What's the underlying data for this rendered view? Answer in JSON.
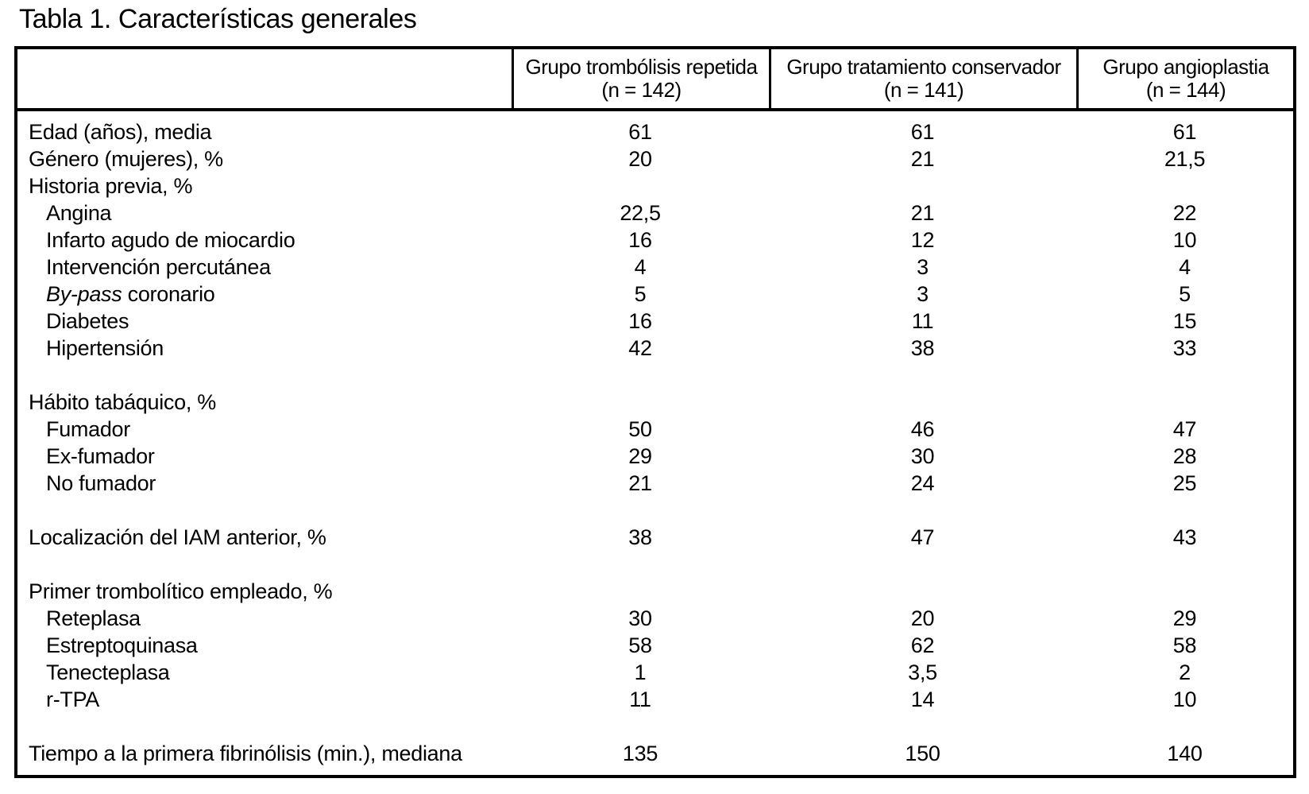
{
  "title": "Tabla 1. Características generales",
  "colors": {
    "text": "#000000",
    "background": "#ffffff",
    "border": "#000000"
  },
  "table": {
    "row_header_column_title": "",
    "columns": [
      {
        "title": "Grupo trombólisis repetida",
        "n": "(n = 142)"
      },
      {
        "title": "Grupo tratamiento conservador",
        "n": "(n = 141)"
      },
      {
        "title": "Grupo angioplastia",
        "n": "(n = 144)"
      }
    ],
    "rows": [
      {
        "label": "Edad (años), media",
        "indent": false,
        "values": [
          "61",
          "61",
          "61"
        ]
      },
      {
        "label": "Género (mujeres), %",
        "indent": false,
        "values": [
          "20",
          "21",
          "21,5"
        ]
      },
      {
        "label": "Historia previa, %",
        "indent": false,
        "values": [
          "",
          "",
          ""
        ]
      },
      {
        "label": "Angina",
        "indent": true,
        "values": [
          "22,5",
          "21",
          "22"
        ]
      },
      {
        "label": "Infarto agudo de miocardio",
        "indent": true,
        "values": [
          "16",
          "12",
          "10"
        ]
      },
      {
        "label": "Intervención percutánea",
        "indent": true,
        "values": [
          "4",
          "3",
          "4"
        ]
      },
      {
        "label_italic": "By-pass",
        "label": " coronario",
        "indent": true,
        "values": [
          "5",
          "3",
          "5"
        ]
      },
      {
        "label": "Diabetes",
        "indent": true,
        "values": [
          "16",
          "11",
          "15"
        ]
      },
      {
        "label": "Hipertensión",
        "indent": true,
        "values": [
          "42",
          "38",
          "33"
        ]
      },
      {
        "blank": true
      },
      {
        "label": "Hábito tabáquico, %",
        "indent": false,
        "values": [
          "",
          "",
          ""
        ]
      },
      {
        "label": "Fumador",
        "indent": true,
        "values": [
          "50",
          "46",
          "47"
        ]
      },
      {
        "label": "Ex-fumador",
        "indent": true,
        "values": [
          "29",
          "30",
          "28"
        ]
      },
      {
        "label": "No fumador",
        "indent": true,
        "values": [
          "21",
          "24",
          "25"
        ]
      },
      {
        "blank": true
      },
      {
        "label": "Localización del IAM anterior, %",
        "indent": false,
        "values": [
          "38",
          "47",
          "43"
        ]
      },
      {
        "blank": true
      },
      {
        "label": "Primer trombolítico empleado, %",
        "indent": false,
        "values": [
          "",
          "",
          ""
        ]
      },
      {
        "label": "Reteplasa",
        "indent": true,
        "values": [
          "30",
          "20",
          "29"
        ]
      },
      {
        "label": "Estreptoquinasa",
        "indent": true,
        "values": [
          "58",
          "62",
          "58"
        ]
      },
      {
        "label": "Tenecteplasa",
        "indent": true,
        "values": [
          "1",
          "3,5",
          "2"
        ]
      },
      {
        "label": "r-TPA",
        "indent": true,
        "values": [
          "11",
          "14",
          "10"
        ]
      },
      {
        "blank": true
      },
      {
        "label": "Tiempo a la primera fibrinólisis (min.), mediana",
        "indent": false,
        "values": [
          "135",
          "150",
          "140"
        ]
      }
    ]
  }
}
